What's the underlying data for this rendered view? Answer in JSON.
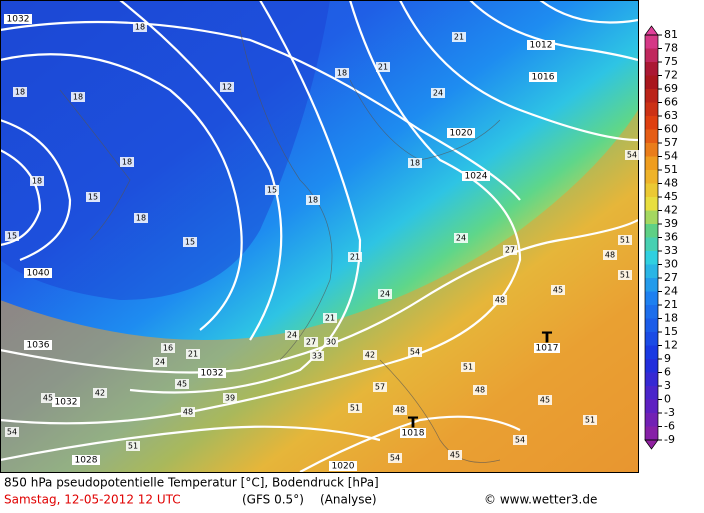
{
  "map": {
    "isobar_labels": [
      "1032",
      "1012",
      "1016",
      "1020",
      "1024",
      "1040",
      "1036",
      "1032",
      "1032",
      "1028",
      "1020"
    ],
    "temperature_labels": [
      "18",
      "18",
      "18",
      "12",
      "18",
      "18",
      "15",
      "18",
      "15",
      "15",
      "15",
      "18",
      "18",
      "18",
      "21",
      "21",
      "24",
      "21",
      "24",
      "24",
      "27",
      "21",
      "24",
      "30",
      "27",
      "33",
      "42",
      "54",
      "51",
      "48",
      "45",
      "48",
      "51",
      "54",
      "48",
      "51",
      "45",
      "54",
      "57",
      "48",
      "45",
      "51",
      "54",
      "16",
      "21",
      "39",
      "42",
      "45",
      "24",
      "45",
      "48",
      "51",
      "54",
      "51"
    ],
    "pressure_centers": [
      {
        "symbol": "T",
        "value": "1017"
      },
      {
        "symbol": "T",
        "value": "1018"
      }
    ]
  },
  "colorbar": {
    "ticks": [
      81,
      78,
      75,
      72,
      69,
      66,
      63,
      60,
      57,
      54,
      51,
      48,
      45,
      42,
      39,
      36,
      33,
      30,
      27,
      24,
      21,
      18,
      15,
      12,
      9,
      6,
      3,
      0,
      -3,
      -6,
      -9
    ]
  },
  "footer": {
    "title": "850 hPa pseudopotentielle Temperatur [°C], Bodendruck [hPa]",
    "date": "Samstag, 12-05-2012  12 UTC",
    "model": "(GFS 0.5°)",
    "run": "(Analyse)",
    "copyright": "© www.wetter3.de"
  }
}
